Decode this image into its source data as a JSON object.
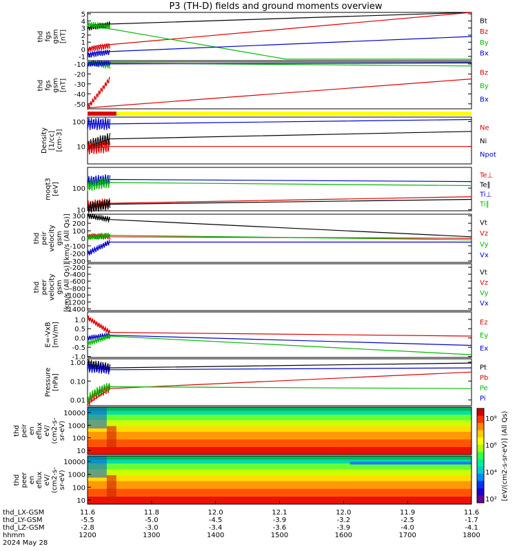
{
  "chart_data": {
    "type": "line",
    "title": "P3 (TH-D) fields and ground moments overview",
    "x_axis": {
      "hhmm": [
        "1200",
        "1300",
        "1400",
        "1500",
        "1600",
        "1700",
        "1800"
      ],
      "rows": [
        {
          "label": "thd_LX-GSM",
          "values": [
            "11.6",
            "11.8",
            "12.0",
            "12.1",
            "12.0",
            "11.9",
            "11.6"
          ]
        },
        {
          "label": "thd_LY-GSM",
          "values": [
            "-5.5",
            "-5.0",
            "-4.5",
            "-3.9",
            "-3.2",
            "-2.5",
            "-1.7"
          ]
        },
        {
          "label": "thd_LZ-GSM",
          "values": [
            "-2.8",
            "-3.0",
            "-3.4",
            "-3.6",
            "-3.9",
            "-4.0",
            "-4.1"
          ]
        },
        {
          "label": "hhmm",
          "values": [
            "1200",
            "1300",
            "1400",
            "1500",
            "1600",
            "1700",
            "1800"
          ]
        }
      ],
      "date": "2024 May 28"
    },
    "panels": [
      {
        "id": "fgs_small",
        "ylabel": [
          "thd",
          "fgs",
          "gsm",
          "[nT]"
        ],
        "ticks": [
          "5",
          "4",
          "3",
          "2",
          "1",
          "0",
          "-1"
        ],
        "ylim": [
          -1.6,
          5.2
        ],
        "legend": [
          {
            "name": "Bt",
            "color": "#000000"
          },
          {
            "name": "Bz",
            "color": "#dd0000"
          },
          {
            "name": "By",
            "color": "#00bb00"
          },
          {
            "name": "Bx",
            "color": "#0000cc"
          }
        ],
        "series": [
          {
            "name": "Bt",
            "color": "#000000",
            "points": [
              [
                1200,
                3.0
              ],
              [
                1215,
                3.5
              ],
              [
                1800,
                5.2
              ]
            ]
          },
          {
            "name": "Bz",
            "color": "#dd0000",
            "points": [
              [
                1200,
                0.0
              ],
              [
                1215,
                0.5
              ],
              [
                1800,
                5.2
              ]
            ]
          },
          {
            "name": "By",
            "color": "#00bb00",
            "points": [
              [
                1200,
                3.5
              ],
              [
                1215,
                3.2
              ],
              [
                1510,
                -1.4
              ],
              [
                1800,
                -1.4
              ]
            ]
          },
          {
            "name": "Bx",
            "color": "#0000cc",
            "points": [
              [
                1200,
                -0.8
              ],
              [
                1215,
                -0.4
              ],
              [
                1800,
                1.8
              ]
            ]
          }
        ]
      },
      {
        "id": "fgs_large",
        "ylabel": [
          "thd",
          "fgs",
          "gsm",
          "[nT]"
        ],
        "ticks": [
          "-10",
          "-20",
          "-30",
          "-40",
          "-50"
        ],
        "ylim": [
          -55,
          -8
        ],
        "legend": [
          {
            "name": "Bz",
            "color": "#dd0000"
          },
          {
            "name": "By",
            "color": "#00bb00"
          },
          {
            "name": "Bx",
            "color": "#0000cc"
          }
        ],
        "series": [
          {
            "name": "Bz",
            "color": "#dd0000",
            "points": [
              [
                1200,
                -54
              ],
              [
                1800,
                -25
              ]
            ]
          },
          {
            "name": "By",
            "color": "#00bb00",
            "points": [
              [
                1200,
                -9
              ],
              [
                1800,
                -12
              ]
            ]
          },
          {
            "name": "Bx",
            "color": "#0000cc",
            "points": [
              [
                1200,
                -10
              ],
              [
                1800,
                -9
              ]
            ]
          }
        ]
      },
      {
        "id": "density",
        "ylabel": [
          "Density",
          "[1/cc]",
          "[cm-3]"
        ],
        "ticks": [
          "100",
          "10"
        ],
        "tick_values": [
          100,
          10
        ],
        "log": true,
        "ylim": [
          2,
          150
        ],
        "legend": [
          {
            "name": "Ne",
            "color": "#dd0000"
          },
          {
            "name": "Ni",
            "color": "#000000"
          },
          {
            "name": "Npot",
            "color": "#0000cc"
          }
        ],
        "series": [
          {
            "name": "Npot",
            "color": "#0000cc",
            "points": [
              [
                1200,
                80
              ],
              [
                1235,
                80
              ],
              [
                1800,
                120
              ]
            ]
          },
          {
            "name": "Ni",
            "color": "#000000",
            "points": [
              [
                1200,
                10
              ],
              [
                1235,
                20
              ],
              [
                1800,
                40
              ]
            ]
          },
          {
            "name": "Ne",
            "color": "#dd0000",
            "points": [
              [
                1200,
                8
              ],
              [
                1235,
                10
              ],
              [
                1800,
                10
              ]
            ]
          }
        ]
      },
      {
        "id": "temperature",
        "ylabel": [
          "moqt3",
          "[eV]"
        ],
        "ticks": [
          "100",
          "10"
        ],
        "tick_values": [
          100,
          10
        ],
        "log": true,
        "ylim": [
          9,
          900
        ],
        "legend": [
          {
            "name": "Te⊥",
            "color": "#dd0000"
          },
          {
            "name": "Te∥",
            "color": "#000000"
          },
          {
            "name": "Ti⊥",
            "color": "#0000cc"
          },
          {
            "name": "Ti∥",
            "color": "#00bb00"
          }
        ],
        "series": [
          {
            "name": "Ti⊥",
            "color": "#0000cc",
            "points": [
              [
                1200,
                200
              ],
              [
                1235,
                250
              ],
              [
                1800,
                200
              ]
            ]
          },
          {
            "name": "Ti∥",
            "color": "#00bb00",
            "points": [
              [
                1200,
                120
              ],
              [
                1235,
                180
              ],
              [
                1800,
                130
              ]
            ]
          },
          {
            "name": "Te⊥",
            "color": "#dd0000",
            "points": [
              [
                1200,
                15
              ],
              [
                1235,
                20
              ],
              [
                1800,
                40
              ]
            ]
          },
          {
            "name": "Te∥",
            "color": "#000000",
            "points": [
              [
                1200,
                12
              ],
              [
                1235,
                18
              ],
              [
                1800,
                30
              ]
            ]
          }
        ]
      },
      {
        "id": "velocity_i",
        "ylabel": [
          "thd",
          "peir",
          "velocity",
          "gsm",
          "[km/s (All Qs)]"
        ],
        "ticks": [
          "300",
          "200",
          "100",
          "0",
          "-100",
          "-200",
          "-300"
        ],
        "ylim": [
          -320,
          320
        ],
        "legend": [
          {
            "name": "Vt",
            "color": "#000000"
          },
          {
            "name": "Vz",
            "color": "#dd0000"
          },
          {
            "name": "Vy",
            "color": "#00bb00"
          },
          {
            "name": "Vx",
            "color": "#0000cc"
          }
        ],
        "series": [
          {
            "name": "Vt",
            "color": "#000000",
            "points": [
              [
                1200,
                300
              ],
              [
                1235,
                250
              ],
              [
                1800,
                20
              ]
            ]
          },
          {
            "name": "Vz",
            "color": "#dd0000",
            "points": [
              [
                1200,
                30
              ],
              [
                1235,
                20
              ],
              [
                1800,
                0
              ]
            ]
          },
          {
            "name": "Vy",
            "color": "#00bb00",
            "points": [
              [
                1200,
                10
              ],
              [
                1235,
                40
              ],
              [
                1800,
                -20
              ]
            ]
          },
          {
            "name": "Vx",
            "color": "#0000cc",
            "points": [
              [
                1200,
                -200
              ],
              [
                1235,
                -50
              ],
              [
                1800,
                -50
              ]
            ]
          }
        ]
      },
      {
        "id": "velocity_e",
        "ylabel": [
          "thd",
          "peer",
          "velocity",
          "gsm",
          "[km/s (All Qs)]"
        ],
        "ticks": [
          "-200",
          "-400",
          "-600",
          "-800",
          "-1000",
          "-1200",
          "-1400"
        ],
        "ylim": [
          -1450,
          -100
        ],
        "legend": [
          {
            "name": "Vt",
            "color": "#000000"
          },
          {
            "name": "Vz",
            "color": "#dd0000"
          },
          {
            "name": "Vy",
            "color": "#00bb00"
          },
          {
            "name": "Vx",
            "color": "#0000cc"
          }
        ],
        "series": []
      },
      {
        "id": "efield",
        "ylabel": [
          "E=-VxB",
          "[mV/m]"
        ],
        "ticks": [
          "1.0",
          "0.5",
          "0.0",
          "-0.5",
          "-1.0"
        ],
        "ylim": [
          -1.05,
          1.4
        ],
        "legend": [
          {
            "name": "Ez",
            "color": "#dd0000"
          },
          {
            "name": "Ey",
            "color": "#00bb00"
          },
          {
            "name": "Ex",
            "color": "#0000cc"
          }
        ],
        "series": [
          {
            "name": "Ez",
            "color": "#dd0000",
            "points": [
              [
                1200,
                1.1
              ],
              [
                1235,
                0.3
              ],
              [
                1800,
                0.1
              ]
            ]
          },
          {
            "name": "Ex",
            "color": "#0000cc",
            "points": [
              [
                1200,
                0.0
              ],
              [
                1235,
                0.15
              ],
              [
                1800,
                -0.4
              ]
            ]
          },
          {
            "name": "Ey",
            "color": "#00bb00",
            "points": [
              [
                1200,
                -0.3
              ],
              [
                1235,
                0.1
              ],
              [
                1800,
                -0.9
              ]
            ]
          }
        ]
      },
      {
        "id": "pressure",
        "ylabel": [
          "Pressure",
          "[nPa]"
        ],
        "ticks": [
          "1.00",
          "0.10",
          "0.01"
        ],
        "tick_values": [
          1,
          0.1,
          0.01
        ],
        "log": true,
        "ylim": [
          0.005,
          1.5
        ],
        "legend": [
          {
            "name": "Pt",
            "color": "#000000"
          },
          {
            "name": "Pb",
            "color": "#dd0000"
          },
          {
            "name": "Pe",
            "color": "#00bb00"
          },
          {
            "name": "Pi",
            "color": "#0000cc"
          }
        ],
        "series": [
          {
            "name": "Pt",
            "color": "#000000",
            "points": [
              [
                1200,
                0.8
              ],
              [
                1235,
                0.5
              ],
              [
                1800,
                0.9
              ]
            ]
          },
          {
            "name": "Pi",
            "color": "#0000cc",
            "points": [
              [
                1200,
                0.5
              ],
              [
                1235,
                0.4
              ],
              [
                1800,
                0.5
              ]
            ]
          },
          {
            "name": "Pb",
            "color": "#dd0000",
            "points": [
              [
                1200,
                0.006
              ],
              [
                1235,
                0.04
              ],
              [
                1800,
                0.3
              ]
            ]
          },
          {
            "name": "Pe",
            "color": "#00bb00",
            "points": [
              [
                1200,
                0.01
              ],
              [
                1235,
                0.05
              ],
              [
                1800,
                0.04
              ]
            ]
          }
        ]
      }
    ],
    "spectrograms": [
      {
        "id": "peir_en_eflux",
        "ylabel": [
          "thd",
          "peir",
          "en",
          "eflux",
          "eV/",
          "(cm2-s-",
          "sr-eV)"
        ],
        "ticks": [
          "10000",
          "1000",
          "100",
          "10"
        ]
      },
      {
        "id": "peer_en_eflux",
        "ylabel": [
          "thd",
          "peer",
          "en",
          "eflux",
          "eV/",
          "(cm2-s-",
          "sr-eV)"
        ],
        "ticks": [
          "10000",
          "1000",
          "100",
          "10"
        ]
      }
    ],
    "colorbar": {
      "ticks": [
        "10⁸",
        "10⁶",
        "10⁴",
        "10²"
      ],
      "label": "[eV/(cm2-s-sr-eV)] (All Qs)",
      "colors": [
        "#cc0000",
        "#ff3300",
        "#ff8800",
        "#ffcc00",
        "#ffff00",
        "#aaff00",
        "#33ff44",
        "#00ee99",
        "#00cccc",
        "#0088ff",
        "#0033ff",
        "#2200cc",
        "#660099"
      ]
    }
  }
}
